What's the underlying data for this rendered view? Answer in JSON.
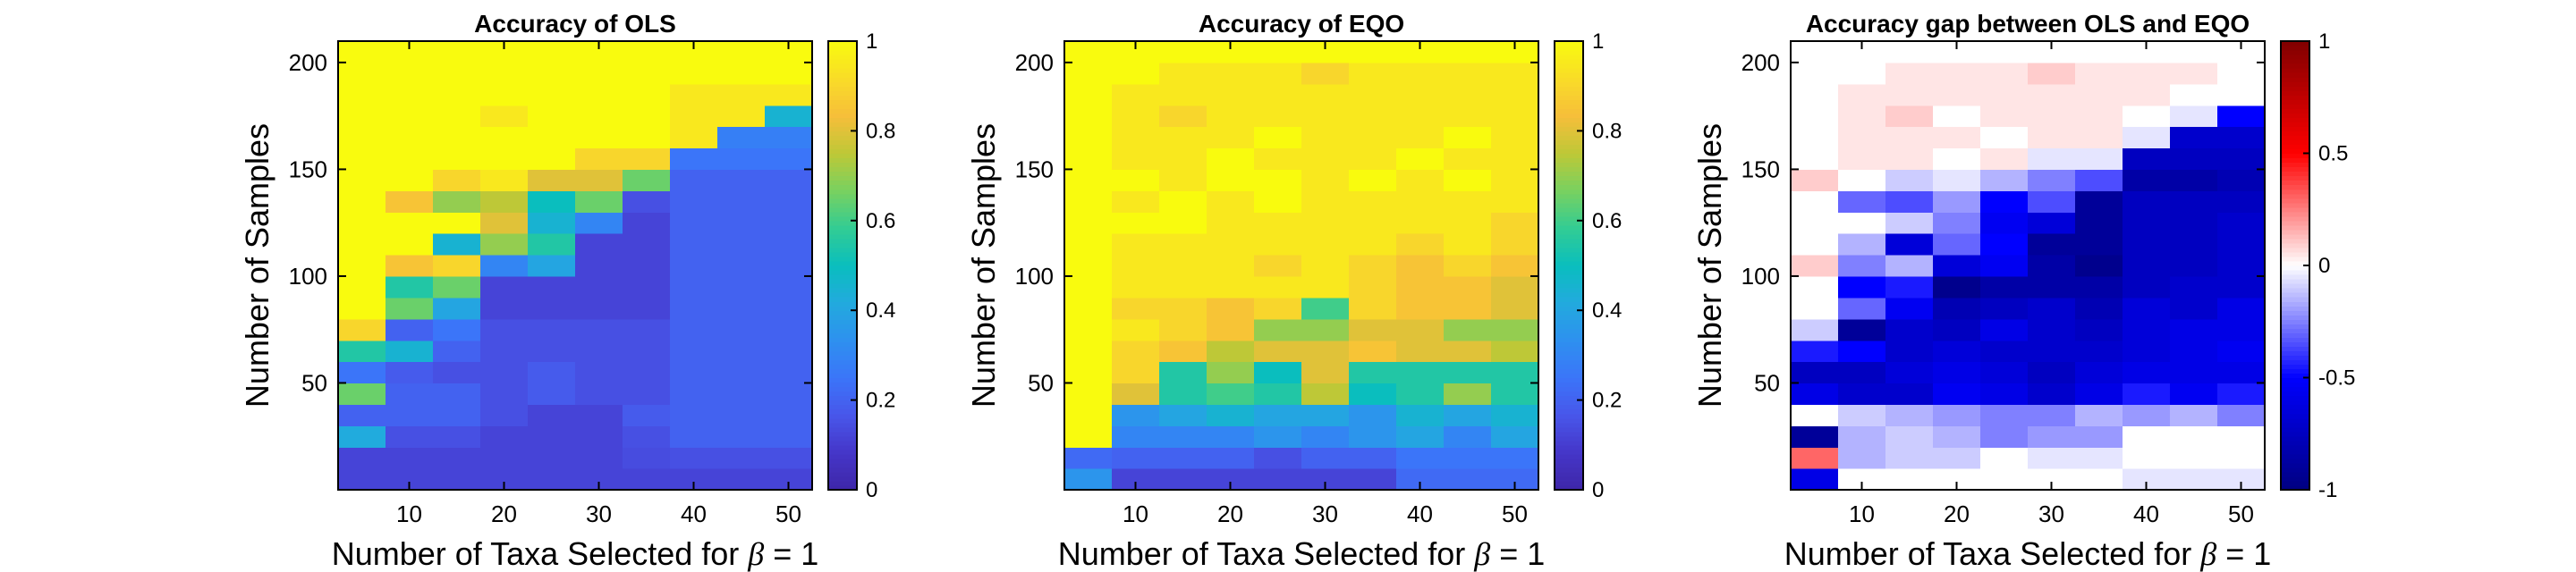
{
  "chart_data": [
    {
      "type": "heatmap",
      "title": "Accuracy of OLS",
      "xlabel": "Number of Taxa Selected for",
      "xlabel_symbol": "β",
      "xlabel_suffix": " = 1",
      "ylabel": "Number of Samples",
      "x": [
        5,
        10,
        15,
        20,
        25,
        30,
        35,
        40,
        45,
        50
      ],
      "xlim": [
        2.5,
        52.5
      ],
      "xticks": [
        10,
        20,
        30,
        40,
        50
      ],
      "y": [
        5,
        15,
        25,
        35,
        45,
        55,
        65,
        75,
        85,
        95,
        105,
        115,
        125,
        135,
        145,
        155,
        165,
        175,
        185,
        195,
        205
      ],
      "ylim": [
        0,
        210
      ],
      "yticks": [
        50,
        100,
        150,
        200
      ],
      "clim": [
        0,
        1
      ],
      "colormap": "parula",
      "colorbar_ticks": [
        0,
        0.2,
        0.4,
        0.6,
        0.8,
        1
      ],
      "colorbar_tick_labels": [
        "0",
        "0.2",
        "0.4",
        "0.6",
        "0.8",
        "1"
      ],
      "z": [
        [
          0.12,
          0.12,
          0.12,
          0.12,
          0.12,
          0.12,
          0.12,
          0.12,
          0.12,
          0.12
        ],
        [
          0.12,
          0.12,
          0.12,
          0.12,
          0.12,
          0.12,
          0.14,
          0.15,
          0.15,
          0.15
        ],
        [
          0.42,
          0.15,
          0.15,
          0.12,
          0.12,
          0.12,
          0.15,
          0.2,
          0.2,
          0.2
        ],
        [
          0.2,
          0.2,
          0.2,
          0.15,
          0.12,
          0.12,
          0.18,
          0.2,
          0.2,
          0.2
        ],
        [
          0.65,
          0.2,
          0.2,
          0.15,
          0.18,
          0.15,
          0.15,
          0.2,
          0.2,
          0.2
        ],
        [
          0.25,
          0.18,
          0.15,
          0.15,
          0.18,
          0.15,
          0.15,
          0.2,
          0.2,
          0.2
        ],
        [
          0.55,
          0.45,
          0.2,
          0.15,
          0.15,
          0.15,
          0.15,
          0.2,
          0.2,
          0.2
        ],
        [
          0.9,
          0.2,
          0.25,
          0.15,
          0.15,
          0.15,
          0.15,
          0.2,
          0.2,
          0.2
        ],
        [
          1.0,
          0.65,
          0.4,
          0.12,
          0.12,
          0.12,
          0.12,
          0.2,
          0.2,
          0.2
        ],
        [
          1.0,
          0.55,
          0.65,
          0.12,
          0.12,
          0.12,
          0.12,
          0.2,
          0.2,
          0.2
        ],
        [
          1.0,
          0.85,
          0.9,
          0.3,
          0.4,
          0.12,
          0.12,
          0.2,
          0.2,
          0.2
        ],
        [
          1.0,
          1.0,
          0.45,
          0.7,
          0.55,
          0.12,
          0.12,
          0.2,
          0.2,
          0.2
        ],
        [
          1.0,
          1.0,
          1.0,
          0.8,
          0.45,
          0.3,
          0.12,
          0.2,
          0.2,
          0.2
        ],
        [
          1.0,
          0.85,
          0.7,
          0.75,
          0.5,
          0.65,
          0.15,
          0.2,
          0.2,
          0.2
        ],
        [
          1.0,
          1.0,
          0.9,
          0.95,
          0.8,
          0.8,
          0.65,
          0.2,
          0.2,
          0.2
        ],
        [
          1.0,
          1.0,
          1.0,
          1.0,
          1.0,
          0.9,
          0.9,
          0.25,
          0.25,
          0.25
        ],
        [
          1.0,
          1.0,
          1.0,
          1.0,
          1.0,
          1.0,
          1.0,
          0.95,
          0.28,
          0.28
        ],
        [
          1.0,
          1.0,
          1.0,
          0.95,
          1.0,
          1.0,
          1.0,
          0.95,
          0.95,
          0.45
        ],
        [
          1.0,
          1.0,
          1.0,
          1.0,
          1.0,
          1.0,
          1.0,
          0.95,
          0.95,
          0.95
        ],
        [
          1.0,
          1.0,
          1.0,
          1.0,
          1.0,
          1.0,
          1.0,
          1.0,
          1.0,
          1.0
        ],
        [
          1.0,
          1.0,
          1.0,
          1.0,
          1.0,
          1.0,
          1.0,
          1.0,
          1.0,
          1.0
        ]
      ]
    },
    {
      "type": "heatmap",
      "title": "Accuracy of EQO",
      "xlabel": "Number of Taxa Selected for",
      "xlabel_symbol": "β",
      "xlabel_suffix": " = 1",
      "ylabel": "Number of Samples",
      "x": [
        5,
        10,
        15,
        20,
        25,
        30,
        35,
        40,
        45,
        50
      ],
      "xlim": [
        2.5,
        52.5
      ],
      "xticks": [
        10,
        20,
        30,
        40,
        50
      ],
      "y": [
        5,
        15,
        25,
        35,
        45,
        55,
        65,
        75,
        85,
        95,
        105,
        115,
        125,
        135,
        145,
        155,
        165,
        175,
        185,
        195,
        205
      ],
      "ylim": [
        0,
        210
      ],
      "yticks": [
        50,
        100,
        150,
        200
      ],
      "clim": [
        0,
        1
      ],
      "colormap": "parula",
      "colorbar_ticks": [
        0,
        0.2,
        0.4,
        0.6,
        0.8,
        1
      ],
      "colorbar_tick_labels": [
        "0",
        "0.2",
        "0.4",
        "0.6",
        "0.8",
        "1"
      ],
      "z": [
        [
          0.35,
          0.12,
          0.12,
          0.12,
          0.12,
          0.12,
          0.12,
          0.22,
          0.22,
          0.22
        ],
        [
          0.22,
          0.2,
          0.2,
          0.2,
          0.15,
          0.2,
          0.2,
          0.25,
          0.25,
          0.25
        ],
        [
          1.0,
          0.3,
          0.3,
          0.3,
          0.35,
          0.3,
          0.35,
          0.4,
          0.3,
          0.4
        ],
        [
          1.0,
          0.35,
          0.4,
          0.45,
          0.4,
          0.4,
          0.35,
          0.45,
          0.4,
          0.45
        ],
        [
          1.0,
          0.8,
          0.55,
          0.6,
          0.55,
          0.75,
          0.5,
          0.55,
          0.7,
          0.55
        ],
        [
          1.0,
          0.9,
          0.55,
          0.7,
          0.5,
          0.8,
          0.55,
          0.55,
          0.55,
          0.55
        ],
        [
          1.0,
          0.9,
          0.85,
          0.75,
          0.8,
          0.8,
          0.85,
          0.8,
          0.8,
          0.75
        ],
        [
          1.0,
          0.95,
          0.9,
          0.85,
          0.7,
          0.7,
          0.8,
          0.8,
          0.7,
          0.7
        ],
        [
          1.0,
          0.9,
          0.9,
          0.85,
          0.9,
          0.6,
          0.9,
          0.85,
          0.85,
          0.8
        ],
        [
          1.0,
          0.95,
          0.95,
          0.95,
          0.95,
          0.95,
          0.9,
          0.85,
          0.85,
          0.8
        ],
        [
          1.0,
          0.95,
          0.95,
          0.95,
          0.9,
          0.95,
          0.9,
          0.85,
          0.9,
          0.85
        ],
        [
          1.0,
          0.95,
          0.95,
          0.95,
          0.95,
          0.95,
          0.95,
          0.9,
          0.95,
          0.9
        ],
        [
          1.0,
          1.0,
          1.0,
          0.95,
          0.95,
          0.95,
          0.95,
          0.95,
          0.95,
          0.9
        ],
        [
          1.0,
          0.95,
          1.0,
          0.95,
          1.0,
          0.95,
          0.95,
          0.95,
          0.95,
          0.95
        ],
        [
          1.0,
          1.0,
          0.95,
          1.0,
          1.0,
          0.95,
          1.0,
          0.95,
          1.0,
          0.95
        ],
        [
          1.0,
          0.95,
          0.95,
          1.0,
          0.95,
          0.95,
          0.95,
          1.0,
          0.95,
          0.95
        ],
        [
          1.0,
          0.95,
          0.95,
          0.95,
          1.0,
          0.95,
          0.95,
          0.95,
          1.0,
          0.95
        ],
        [
          1.0,
          0.95,
          0.9,
          0.95,
          0.95,
          0.95,
          0.95,
          0.95,
          0.95,
          0.95
        ],
        [
          1.0,
          0.95,
          0.95,
          0.95,
          0.95,
          0.95,
          0.95,
          0.95,
          0.95,
          0.95
        ],
        [
          1.0,
          1.0,
          0.95,
          0.95,
          0.95,
          0.9,
          0.95,
          0.95,
          0.95,
          0.95
        ],
        [
          1.0,
          1.0,
          1.0,
          1.0,
          1.0,
          1.0,
          1.0,
          1.0,
          1.0,
          1.0
        ]
      ]
    },
    {
      "type": "heatmap",
      "title": "Accuracy gap between OLS and EQO",
      "xlabel": "Number of Taxa Selected for",
      "xlabel_symbol": "β",
      "xlabel_suffix": " = 1",
      "ylabel": "Number of Samples",
      "x": [
        5,
        10,
        15,
        20,
        25,
        30,
        35,
        40,
        45,
        50
      ],
      "xlim": [
        2.5,
        52.5
      ],
      "xticks": [
        10,
        20,
        30,
        40,
        50
      ],
      "y": [
        5,
        15,
        25,
        35,
        45,
        55,
        65,
        75,
        85,
        95,
        105,
        115,
        125,
        135,
        145,
        155,
        165,
        175,
        185,
        195,
        205
      ],
      "ylim": [
        0,
        210
      ],
      "yticks": [
        50,
        100,
        150,
        200
      ],
      "clim": [
        -1,
        1
      ],
      "colormap": "blue-white-red",
      "colorbar_ticks": [
        -1,
        -0.5,
        0,
        0.5,
        1
      ],
      "colorbar_tick_labels": [
        "-1",
        "-0.5",
        "0",
        "0.5",
        "1"
      ],
      "z": [
        [
          -0.6,
          0.0,
          0.0,
          0.0,
          0.0,
          0.0,
          0.0,
          -0.05,
          -0.05,
          -0.05
        ],
        [
          0.3,
          -0.15,
          -0.1,
          -0.1,
          0.0,
          -0.05,
          -0.05,
          0.0,
          0.0,
          0.0
        ],
        [
          -0.9,
          -0.15,
          -0.1,
          -0.15,
          -0.25,
          -0.2,
          -0.2,
          0.0,
          0.0,
          0.0
        ],
        [
          0.0,
          -0.1,
          -0.15,
          -0.2,
          -0.25,
          -0.25,
          -0.15,
          -0.2,
          -0.15,
          -0.25
        ],
        [
          -0.6,
          -0.7,
          -0.7,
          -0.55,
          -0.6,
          -0.7,
          -0.6,
          -0.45,
          -0.55,
          -0.45
        ],
        [
          -0.75,
          -0.75,
          -0.65,
          -0.6,
          -0.65,
          -0.75,
          -0.65,
          -0.6,
          -0.6,
          -0.6
        ],
        [
          -0.45,
          -0.5,
          -0.7,
          -0.65,
          -0.7,
          -0.7,
          -0.7,
          -0.65,
          -0.6,
          -0.55
        ],
        [
          -0.1,
          -0.9,
          -0.7,
          -0.75,
          -0.6,
          -0.7,
          -0.75,
          -0.65,
          -0.6,
          -0.6
        ],
        [
          0.0,
          -0.3,
          -0.55,
          -0.8,
          -0.75,
          -0.7,
          -0.8,
          -0.65,
          -0.7,
          -0.6
        ],
        [
          0.0,
          -0.5,
          -0.45,
          -0.95,
          -0.85,
          -0.85,
          -0.85,
          -0.75,
          -0.7,
          -0.7
        ],
        [
          0.1,
          -0.25,
          -0.15,
          -0.65,
          -0.55,
          -0.85,
          -0.95,
          -0.75,
          -0.75,
          -0.7
        ],
        [
          0.0,
          -0.15,
          -0.65,
          -0.3,
          -0.5,
          -0.9,
          -0.9,
          -0.75,
          -0.75,
          -0.7
        ],
        [
          0.0,
          0.0,
          -0.1,
          -0.25,
          -0.55,
          -0.65,
          -0.9,
          -0.75,
          -0.75,
          -0.7
        ],
        [
          0.0,
          -0.3,
          -0.35,
          -0.2,
          -0.5,
          -0.35,
          -0.9,
          -0.75,
          -0.75,
          -0.75
        ],
        [
          0.1,
          0.0,
          -0.1,
          -0.05,
          -0.15,
          -0.25,
          -0.35,
          -0.85,
          -0.85,
          -0.8
        ],
        [
          0.0,
          0.05,
          0.05,
          0.0,
          0.05,
          -0.05,
          -0.05,
          -0.75,
          -0.75,
          -0.75
        ],
        [
          0.0,
          0.05,
          0.05,
          0.05,
          0.0,
          0.05,
          0.05,
          -0.05,
          -0.7,
          -0.7
        ],
        [
          0.0,
          0.05,
          0.1,
          0.0,
          0.05,
          0.05,
          0.05,
          0.0,
          -0.05,
          -0.5
        ],
        [
          0.0,
          0.05,
          0.05,
          0.05,
          0.05,
          0.05,
          0.05,
          0.05,
          0.0,
          0.0
        ],
        [
          0.0,
          0.0,
          0.05,
          0.05,
          0.05,
          0.1,
          0.05,
          0.05,
          0.05,
          0.0
        ],
        [
          0.0,
          0.0,
          0.0,
          0.0,
          0.0,
          0.0,
          0.0,
          0.0,
          0.0,
          0.0
        ]
      ]
    }
  ]
}
